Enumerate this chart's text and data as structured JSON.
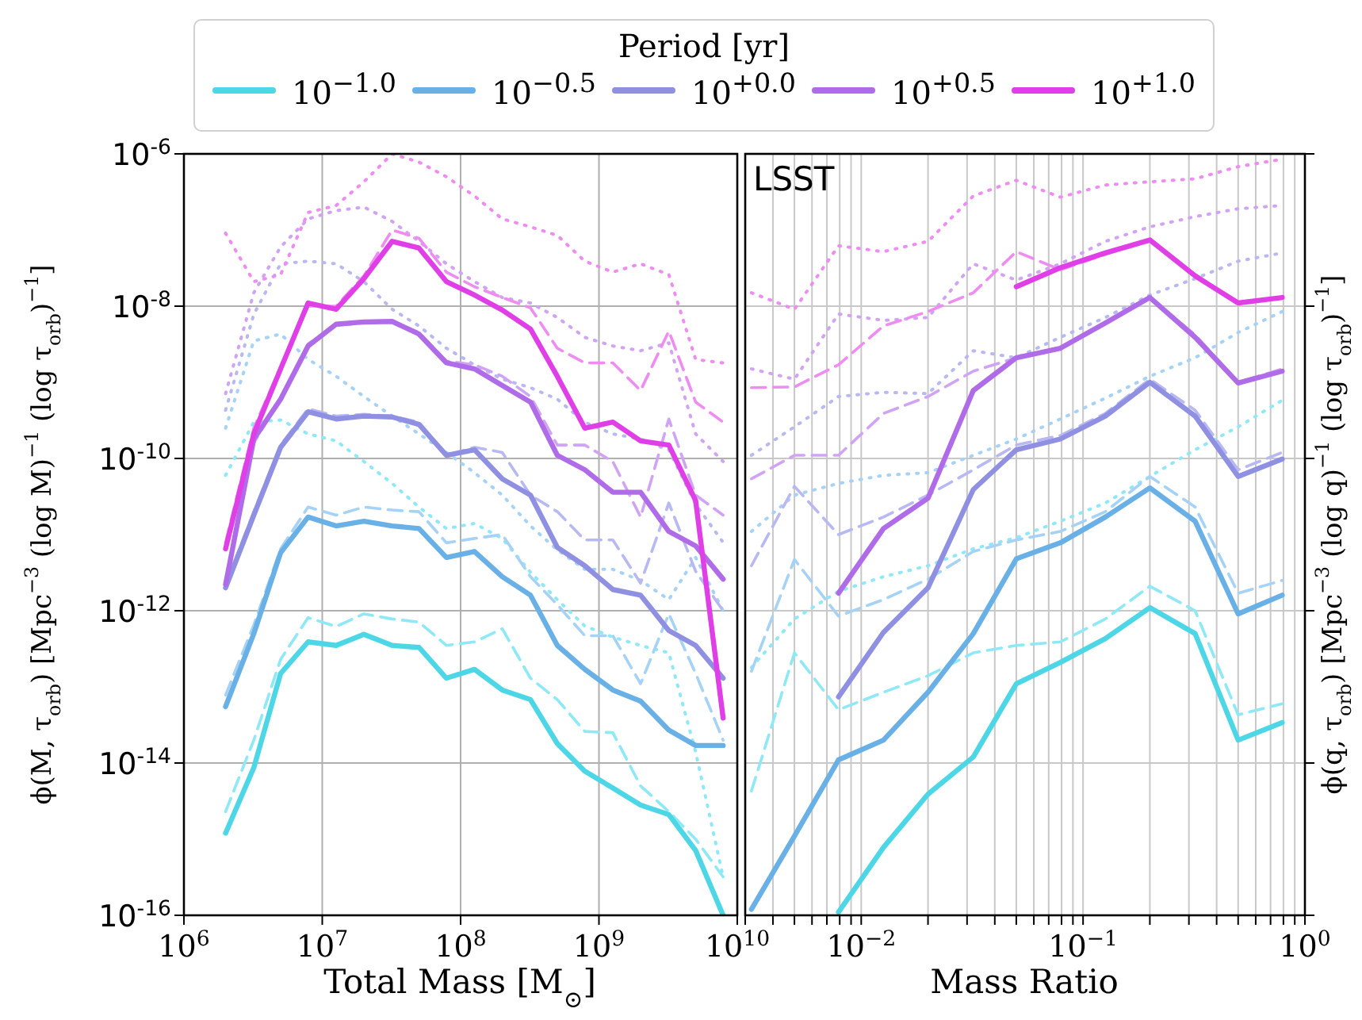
{
  "chart_data": [
    {
      "type": "line",
      "xlabel": "Total Mass [M$_{⊙}$]",
      "ylabel": "ϕ(M, τ$_{orb}$) [Mpc$^{−3}$ (log M)$^{−1}$ (log τ$_{orb}$)$^{−1}$]",
      "legend": "top",
      "legend_title": "Period [yr]",
      "log": "xy",
      "grid": true,
      "xlim": [
        1000000.0,
        10000000000.0
      ],
      "xticks": [
        {
          "value": 1000000.0,
          "label": "10$^{6}$"
        },
        {
          "value": 10000000.0,
          "label": "10$^{7}$"
        },
        {
          "value": 100000000.0,
          "label": "10$^{8}$"
        },
        {
          "value": 1000000000.0,
          "label": "10$^{9}$"
        },
        {
          "value": 10000000000.0,
          "label": "10$^{10}$"
        }
      ],
      "ylim": [
        1e-16,
        1e-06
      ],
      "yticks": [
        {
          "value": 1e-16,
          "label": "10$^{-16}$"
        },
        {
          "value": 1e-14,
          "label": "10$^{-14}$"
        },
        {
          "value": 1e-12,
          "label": "10$^{-12}$"
        },
        {
          "value": 1e-10,
          "label": "10$^{-10}$"
        },
        {
          "value": 1e-08,
          "label": "10$^{-8}$"
        },
        {
          "value": 1e-06,
          "label": "10$^{-6}$"
        }
      ],
      "x": [
        2000000.0,
        3200000.0,
        5000000.0,
        7900000.0,
        12600000.0,
        20000000.0,
        32000000.0,
        50000000.0,
        79000000.0,
        126000000.0,
        200000000.0,
        320000000.0,
        500000000.0,
        790000000.0,
        1260000000.0,
        2000000000.0,
        3200000000.0,
        5000000000.0,
        7900000000.0
      ],
      "series": [
        {
          "color": "#8ee8f5",
          "line_style": "dotted",
          "values": [
            6e-11,
            3e-10,
            3.2e-10,
            2.1e-10,
            1.7e-10,
            9.1e-11,
            4.7e-11,
            2.3e-11,
            1.2e-11,
            1.4e-11,
            8.9e-12,
            3.2e-12,
            1.4e-12,
            6.3e-13,
            4.5e-13,
            3.5e-13,
            2.8e-13,
            1.4e-14,
            3.2e-16
          ]
        },
        {
          "color": "#a6d2f5",
          "line_style": "dotted",
          "values": [
            2.5e-10,
            3.5e-09,
            4.3e-09,
            2e-09,
            1.2e-09,
            6.5e-10,
            3.6e-10,
            2.1e-10,
            1.2e-10,
            6.5e-11,
            3.3e-11,
            1.3e-11,
            6.3e-12,
            3.5e-12,
            3.5e-12,
            2.5e-12,
            1.4e-12,
            5e-12,
            1e-12
          ]
        },
        {
          "color": "#b8b8f2",
          "line_style": "dotted",
          "values": [
            4.3e-10,
            7.8e-09,
            3.6e-08,
            3.9e-08,
            3.6e-08,
            2.1e-08,
            9.1e-09,
            5.5e-09,
            2.8e-09,
            1.7e-09,
            1.1e-09,
            8.5e-10,
            6e-10,
            3e-10,
            2.1e-10,
            1.8e-10,
            1.3e-10,
            2.5e-11,
            7.9e-12
          ]
        },
        {
          "color": "#d0a4f2",
          "line_style": "dotted",
          "values": [
            7.1e-10,
            1.5e-08,
            6e-08,
            1.4e-07,
            1.8e-07,
            2e-07,
            1.3e-07,
            7.1e-08,
            3.6e-08,
            2.1e-08,
            1.3e-08,
            1.1e-08,
            7.1e-09,
            3.9e-09,
            3e-09,
            2.6e-09,
            3.3e-09,
            2.1e-10,
            9.1e-11
          ]
        },
        {
          "color": "#ef8cf2",
          "line_style": "dotted",
          "values": [
            9.1e-08,
            2.1e-08,
            2.6e-08,
            1.7e-07,
            2.1e-07,
            4.3e-07,
            1e-06,
            7.8e-07,
            5e-07,
            2.8e-07,
            1.4e-07,
            1.1e-07,
            8.5e-08,
            3.9e-08,
            2.8e-08,
            3.6e-08,
            2.6e-08,
            2e-09,
            1.8e-09
          ]
        },
        {
          "color": "#8ee8f5",
          "line_style": "dashed",
          "values": [
            2.3e-15,
            2e-14,
            2.3e-13,
            8.1e-13,
            6.2e-13,
            9.1e-13,
            7.8e-13,
            7.1e-13,
            3.5e-13,
            3.9e-13,
            5.8e-13,
            1.3e-13,
            6.8e-14,
            2.6e-14,
            2.5e-14,
            5e-15,
            2.3e-15,
            1e-15,
            3.2e-16
          ]
        },
        {
          "color": "#a6d2f5",
          "line_style": "dashed",
          "values": [
            7.8e-14,
            6.5e-13,
            6.5e-12,
            2.3e-11,
            1.8e-11,
            2.3e-11,
            2.1e-11,
            2e-11,
            7.8e-12,
            8.9e-12,
            1e-11,
            2.8e-12,
            1.2e-12,
            4.7e-13,
            4.7e-13,
            1.1e-13,
            9.1e-13,
            1.5e-13,
            2e-14
          ]
        },
        {
          "color": "#b8b8f2",
          "line_style": "dashed",
          "values": [
            2.2e-12,
            2e-11,
            1.5e-10,
            4.5e-10,
            3.6e-10,
            3.8e-10,
            3.6e-10,
            3e-10,
            1.1e-10,
            1.4e-10,
            1.2e-10,
            3.3e-11,
            2e-11,
            8.5e-12,
            8.5e-12,
            2.3e-12,
            2.6e-11,
            3.3e-12,
            1e-12
          ]
        },
        {
          "color": "#d0a4f2",
          "line_style": "dashed",
          "values": [
            2.5e-12,
            1.6e-10,
            6.3e-10,
            3.2e-09,
            5.6e-09,
            6e-09,
            6.3e-09,
            4.5e-09,
            1.9e-09,
            1.7e-09,
            1.2e-09,
            6.5e-10,
            1.5e-10,
            1.5e-10,
            9.1e-11,
            1.7e-11,
            3.3e-10,
            3.3e-11,
            1.8e-11
          ]
        },
        {
          "color": "#ef8cf2",
          "line_style": "dashed",
          "values": [
            7.9e-12,
            2.5e-10,
            1.6e-09,
            1e-08,
            1e-08,
            2.5e-08,
            1e-07,
            7.8e-08,
            2.8e-08,
            1.8e-08,
            1.3e-08,
            9.5e-09,
            2.8e-09,
            1.8e-09,
            1.8e-09,
            7.8e-10,
            4.7e-09,
            5.5e-10,
            3e-10
          ]
        },
        {
          "name": "10$^{−1.0}$",
          "color": "#4dd6e6",
          "line_style": "solid",
          "values": [
            1.2e-15,
            8.7e-15,
            1.5e-13,
            3.9e-13,
            3.5e-13,
            4.9e-13,
            3.5e-13,
            3.3e-13,
            1.3e-13,
            1.7e-13,
            9.1e-14,
            6.8e-14,
            1.8e-14,
            7.8e-15,
            4.7e-15,
            2.8e-15,
            2.1e-15,
            7.1e-16,
            1e-16
          ]
        },
        {
          "name": "10$^{−0.5}$",
          "color": "#68b0e6",
          "line_style": "solid",
          "values": [
            5.5e-14,
            5e-13,
            5.8e-12,
            1.7e-11,
            1.3e-11,
            1.5e-11,
            1.3e-11,
            1.2e-11,
            5e-12,
            6e-12,
            2.8e-12,
            1.6e-12,
            3.5e-13,
            1.7e-13,
            9.1e-14,
            6.5e-14,
            2.7e-14,
            1.7e-14,
            1.7e-14
          ]
        },
        {
          "name": "10$^{+0.0}$",
          "color": "#8f90e2",
          "line_style": "solid",
          "values": [
            2e-12,
            1.8e-11,
            1.4e-10,
            4.1e-10,
            3.3e-10,
            3.6e-10,
            3.5e-10,
            2.8e-10,
            1.1e-10,
            1.3e-10,
            5.4e-11,
            3.3e-11,
            6.8e-12,
            3.9e-12,
            1.9e-12,
            1.6e-12,
            5.5e-13,
            3.5e-13,
            1.3e-13
          ]
        },
        {
          "name": "10$^{+0.5}$",
          "color": "#b06ce8",
          "line_style": "solid",
          "values": [
            2.2e-12,
            1.8e-10,
            6e-10,
            3e-09,
            5.8e-09,
            6.2e-09,
            6.3e-09,
            4.3e-09,
            1.8e-09,
            1.5e-09,
            9.1e-10,
            5.5e-10,
            1.1e-10,
            7.1e-11,
            3.6e-11,
            3.6e-11,
            1.1e-11,
            7.1e-12,
            2.6e-12
          ]
        },
        {
          "name": "10$^{+1.0}$",
          "color": "#e03ee6",
          "line_style": "solid",
          "values": [
            6.5e-12,
            2.1e-10,
            1.5e-09,
            1.1e-08,
            9.1e-09,
            2.3e-08,
            7.1e-08,
            5.8e-08,
            2.1e-08,
            1.4e-08,
            8.9e-09,
            5e-09,
            1.2e-09,
            2.5e-10,
            3e-10,
            1.7e-10,
            1.5e-10,
            2.8e-11,
            3.9e-14
          ]
        }
      ]
    },
    {
      "type": "line",
      "xlabel": "Mass Ratio",
      "ylabel": "ϕ(q, τ$_{orb}$) [Mpc$^{−3}$ (log q)$^{−1}$ (log τ$_{orb}$)$^{−1}$]",
      "log": "xy",
      "grid": true,
      "tick_labels": "x",
      "annotations": [
        "LSST"
      ],
      "xlim": [
        0.003,
        1
      ],
      "xticks": [
        {
          "value": 0.003,
          "label": null
        },
        {
          "value": 0.004,
          "label": null
        },
        {
          "value": 0.005,
          "label": null
        },
        {
          "value": 0.006,
          "label": null
        },
        {
          "value": 0.007,
          "label": null
        },
        {
          "value": 0.008,
          "label": null
        },
        {
          "value": 0.009,
          "label": null
        },
        {
          "value": 0.01,
          "label": "10$^{−2}$"
        },
        {
          "value": 0.02,
          "label": null
        },
        {
          "value": 0.03,
          "label": null
        },
        {
          "value": 0.04,
          "label": null
        },
        {
          "value": 0.05,
          "label": null
        },
        {
          "value": 0.06,
          "label": null
        },
        {
          "value": 0.07,
          "label": null
        },
        {
          "value": 0.08,
          "label": null
        },
        {
          "value": 0.09,
          "label": null
        },
        {
          "value": 0.1,
          "label": "10$^{−1}$"
        },
        {
          "value": 0.2,
          "label": null
        },
        {
          "value": 0.3,
          "label": null
        },
        {
          "value": 0.4,
          "label": null
        },
        {
          "value": 0.5,
          "label": null
        },
        {
          "value": 0.6,
          "label": null
        },
        {
          "value": 0.7,
          "label": null
        },
        {
          "value": 0.8,
          "label": null
        },
        {
          "value": 0.9,
          "label": null
        },
        {
          "value": 1,
          "label": "10$^{0}$"
        }
      ],
      "ylim": [
        1e-16,
        1e-06
      ],
      "yticks": [
        {
          "value": 1e-16,
          "label": null
        },
        {
          "value": 1e-14,
          "label": null
        },
        {
          "value": 1e-12,
          "label": null
        },
        {
          "value": 1e-10,
          "label": null
        },
        {
          "value": 1e-08,
          "label": null
        },
        {
          "value": 1e-06,
          "label": null
        }
      ],
      "x": [
        0.0032,
        0.005,
        0.0079,
        0.0126,
        0.02,
        0.032,
        0.05,
        0.079,
        0.126,
        0.2,
        0.32,
        0.5,
        0.79
      ],
      "series": [
        {
          "color": "#8ee8f5",
          "line_style": "dotted",
          "values": [
            1.8e-13,
            7.8e-13,
            1.8e-12,
            2.8e-12,
            3.9e-12,
            6.5e-12,
            9.1e-12,
            1.5e-11,
            2.6e-11,
            5.8e-11,
            1.3e-10,
            2.6e-10,
            5.8e-10
          ]
        },
        {
          "color": "#a6d2f5",
          "line_style": "dotted",
          "values": [
            1.1e-11,
            3.3e-11,
            4.7e-11,
            6e-11,
            6.5e-11,
            1.1e-10,
            1.8e-10,
            3.3e-10,
            6.2e-10,
            1.2e-09,
            2.1e-09,
            4.5e-09,
            8.5e-09
          ]
        },
        {
          "color": "#b8b8f2",
          "line_style": "dotted",
          "values": [
            1.1e-10,
            2.6e-10,
            6.5e-10,
            7.4e-10,
            7.1e-10,
            2.6e-09,
            2.1e-09,
            3.9e-09,
            7.1e-09,
            1.4e-08,
            2.3e-08,
            3.9e-08,
            5e-08
          ]
        },
        {
          "color": "#d0a4f2",
          "line_style": "dotted",
          "values": [
            1.5e-09,
            1.1e-09,
            7.9e-09,
            6.5e-09,
            7.1e-09,
            3.6e-08,
            2.2e-08,
            3.6e-08,
            7.1e-08,
            1.1e-07,
            1.5e-07,
            1.9e-07,
            2.1e-07
          ]
        },
        {
          "color": "#ef8cf2",
          "line_style": "dotted",
          "values": [
            1.5e-08,
            9.1e-09,
            6.2e-08,
            5.2e-08,
            7.1e-08,
            2.8e-07,
            4.5e-07,
            2.7e-07,
            3.9e-07,
            4.3e-07,
            4.7e-07,
            6.8e-07,
            8.5e-07
          ]
        },
        {
          "color": "#8ee8f5",
          "line_style": "dashed",
          "values": [
            4.3e-15,
            2.8e-13,
            5e-14,
            8.5e-14,
            1.4e-13,
            2.8e-13,
            3.5e-13,
            3.9e-13,
            7.8e-13,
            2.1e-12,
            1e-12,
            4.3e-14,
            6e-14
          ]
        },
        {
          "color": "#a6d2f5",
          "line_style": "dashed",
          "values": [
            1.6e-13,
            4.7e-12,
            8.5e-13,
            1.4e-12,
            2.6e-12,
            6e-12,
            8.5e-12,
            1.1e-11,
            2e-11,
            5.8e-11,
            2.3e-11,
            1.7e-12,
            2.5e-12
          ]
        },
        {
          "color": "#b8b8f2",
          "line_style": "dashed",
          "values": [
            3.9e-12,
            4.3e-11,
            1e-11,
            1.7e-11,
            3.3e-11,
            7.1e-11,
            1.5e-10,
            2e-10,
            3.9e-10,
            1.1e-09,
            4.3e-10,
            7.1e-11,
            1.2e-10
          ]
        },
        {
          "color": "#d0a4f2",
          "line_style": "dashed",
          "values": [
            5.4e-11,
            1.1e-10,
            1.1e-10,
            3.9e-10,
            6.5e-10,
            1.4e-09,
            2.1e-09,
            2.8e-09,
            6e-09,
            1.3e-08,
            4.2e-09,
            1e-09,
            1.5e-09
          ]
        },
        {
          "color": "#ef8cf2",
          "line_style": "dashed",
          "values": [
            8.5e-10,
            8.7e-10,
            1.7e-09,
            5.5e-09,
            8.5e-09,
            1.5e-08,
            5.2e-08,
            3e-08,
            4.8e-08,
            7.2e-08,
            2.4e-08,
            1.1e-08,
            1.3e-08
          ]
        },
        {
          "color": "#4dd6e6",
          "line_style": "solid",
          "values": [
            null,
            null,
            1.1e-16,
            7.8e-16,
            3.9e-15,
            1.2e-14,
            1.1e-13,
            2.1e-13,
            4.3e-13,
            1.1e-12,
            5e-13,
            2e-14,
            3.4e-14
          ]
        },
        {
          "color": "#68b0e6",
          "line_style": "solid",
          "values": [
            1.2e-16,
            1.1e-15,
            1.1e-14,
            2e-14,
            8.5e-14,
            5e-13,
            4.8e-12,
            7.8e-12,
            1.7e-11,
            4.1e-11,
            1.5e-11,
            9.1e-13,
            1.6e-12
          ]
        },
        {
          "color": "#8f90e2",
          "line_style": "solid",
          "values": [
            null,
            null,
            7.4e-14,
            5.2e-13,
            2e-12,
            3.9e-11,
            1.3e-10,
            1.8e-10,
            3.6e-10,
            1e-09,
            3.6e-10,
            5.8e-11,
            9.8e-11
          ]
        },
        {
          "color": "#b06ce8",
          "line_style": "solid",
          "values": [
            null,
            null,
            1.7e-12,
            1.2e-11,
            3e-11,
            7.8e-10,
            2.1e-09,
            2.8e-09,
            6e-09,
            1.3e-08,
            3.9e-09,
            9.8e-10,
            1.4e-09
          ]
        },
        {
          "color": "#e03ee6",
          "line_style": "solid",
          "values": [
            null,
            null,
            null,
            null,
            null,
            null,
            1.8e-08,
            3.2e-08,
            5e-08,
            7.4e-08,
            2.5e-08,
            1.1e-08,
            1.3e-08
          ]
        }
      ]
    }
  ]
}
